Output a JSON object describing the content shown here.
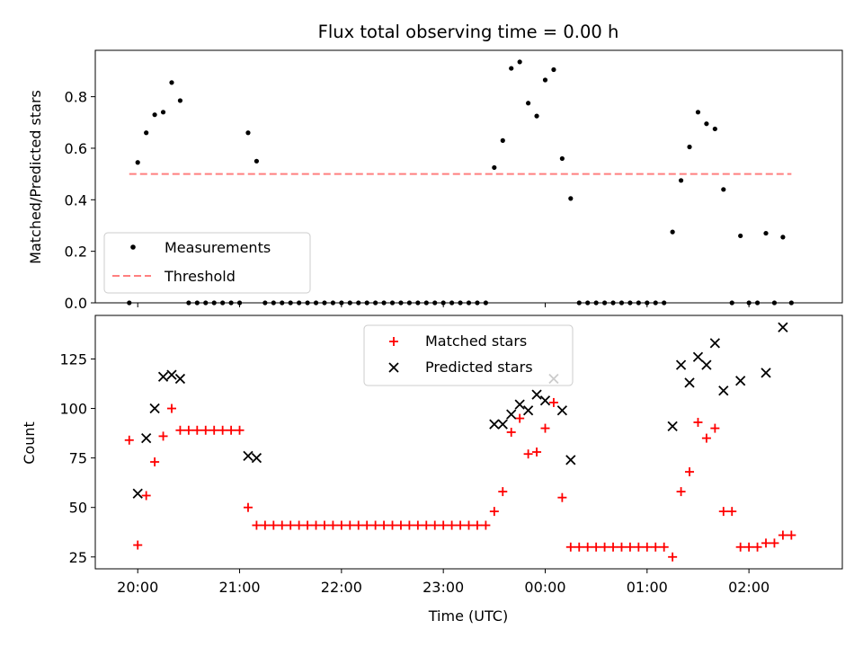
{
  "chart_data": [
    {
      "type": "scatter",
      "title": "Flux total observing time = 0.00 h",
      "xlabel": "",
      "ylabel": "Matched/Predicted stars",
      "xlim": [
        "19:35",
        "02:55"
      ],
      "ylim": [
        0,
        0.98
      ],
      "yticks": [
        "0.0",
        "0.2",
        "0.4",
        "0.6",
        "0.8"
      ],
      "grid": false,
      "legend": "lower-left",
      "series": [
        {
          "name": "Measurements",
          "marker": "dot",
          "color": "#000000",
          "points": [
            [
              "19:55",
              0
            ],
            [
              "20:00",
              0.545
            ],
            [
              "20:05",
              0.66
            ],
            [
              "20:10",
              0.73
            ],
            [
              "20:15",
              0.74
            ],
            [
              "20:20",
              0.855
            ],
            [
              "20:25",
              0.785
            ],
            [
              "20:30",
              0
            ],
            [
              "20:35",
              0
            ],
            [
              "20:40",
              0
            ],
            [
              "20:45",
              0
            ],
            [
              "20:50",
              0
            ],
            [
              "20:55",
              0
            ],
            [
              "21:00",
              0
            ],
            [
              "21:05",
              0.66
            ],
            [
              "21:10",
              0.55
            ],
            [
              "21:15",
              0
            ],
            [
              "21:20",
              0
            ],
            [
              "21:25",
              0
            ],
            [
              "21:30",
              0
            ],
            [
              "21:35",
              0
            ],
            [
              "21:40",
              0
            ],
            [
              "21:45",
              0
            ],
            [
              "21:50",
              0
            ],
            [
              "21:55",
              0
            ],
            [
              "22:00",
              0
            ],
            [
              "22:05",
              0
            ],
            [
              "22:10",
              0
            ],
            [
              "22:15",
              0
            ],
            [
              "22:20",
              0
            ],
            [
              "22:25",
              0
            ],
            [
              "22:30",
              0
            ],
            [
              "22:35",
              0
            ],
            [
              "22:40",
              0
            ],
            [
              "22:45",
              0
            ],
            [
              "22:50",
              0
            ],
            [
              "22:55",
              0
            ],
            [
              "23:00",
              0
            ],
            [
              "23:05",
              0
            ],
            [
              "23:10",
              0
            ],
            [
              "23:15",
              0
            ],
            [
              "23:20",
              0
            ],
            [
              "23:25",
              0
            ],
            [
              "23:30",
              0.525
            ],
            [
              "23:35",
              0.63
            ],
            [
              "23:40",
              0.91
            ],
            [
              "23:45",
              0.935
            ],
            [
              "23:50",
              0.775
            ],
            [
              "23:55",
              0.725
            ],
            [
              "00:00",
              0.865
            ],
            [
              "00:05",
              0.905
            ],
            [
              "00:10",
              0.56
            ],
            [
              "00:15",
              0.405
            ],
            [
              "00:20",
              0
            ],
            [
              "00:25",
              0
            ],
            [
              "00:30",
              0
            ],
            [
              "00:35",
              0
            ],
            [
              "00:40",
              0
            ],
            [
              "00:45",
              0
            ],
            [
              "00:50",
              0
            ],
            [
              "00:55",
              0
            ],
            [
              "01:00",
              0
            ],
            [
              "01:05",
              0
            ],
            [
              "01:10",
              0
            ],
            [
              "01:15",
              0.275
            ],
            [
              "01:20",
              0.475
            ],
            [
              "01:25",
              0.605
            ],
            [
              "01:30",
              0.74
            ],
            [
              "01:35",
              0.695
            ],
            [
              "01:40",
              0.675
            ],
            [
              "01:45",
              0.44
            ],
            [
              "01:50",
              0
            ],
            [
              "01:55",
              0.26
            ],
            [
              "02:00",
              0
            ],
            [
              "02:05",
              0
            ],
            [
              "02:10",
              0.27
            ],
            [
              "02:15",
              0
            ],
            [
              "02:20",
              0.255
            ],
            [
              "02:25",
              0
            ]
          ]
        },
        {
          "name": "Threshold",
          "marker": "dashed-line",
          "color": "#ff7f7f",
          "points": [
            [
              "19:55",
              0.5
            ],
            [
              "02:25",
              0.5
            ]
          ]
        }
      ]
    },
    {
      "type": "scatter",
      "title": "",
      "xlabel": "Time (UTC)",
      "ylabel": "Count",
      "xlim": [
        "19:35",
        "02:55"
      ],
      "ylim": [
        19,
        147
      ],
      "xticks": [
        "20:00",
        "21:00",
        "22:00",
        "23:00",
        "00:00",
        "01:00",
        "02:00"
      ],
      "yticks": [
        "25",
        "50",
        "75",
        "100",
        "125"
      ],
      "grid": false,
      "legend": "upper-center",
      "series": [
        {
          "name": "Matched stars",
          "marker": "plus",
          "color": "#ff0000",
          "points": [
            [
              "19:55",
              84
            ],
            [
              "20:00",
              31
            ],
            [
              "20:05",
              56
            ],
            [
              "20:10",
              73
            ],
            [
              "20:15",
              86
            ],
            [
              "20:20",
              100
            ],
            [
              "20:25",
              89
            ],
            [
              "20:30",
              89
            ],
            [
              "20:35",
              89
            ],
            [
              "20:40",
              89
            ],
            [
              "20:45",
              89
            ],
            [
              "20:50",
              89
            ],
            [
              "20:55",
              89
            ],
            [
              "21:00",
              89
            ],
            [
              "21:05",
              50
            ],
            [
              "21:10",
              41
            ],
            [
              "21:15",
              41
            ],
            [
              "21:20",
              41
            ],
            [
              "21:25",
              41
            ],
            [
              "21:30",
              41
            ],
            [
              "21:35",
              41
            ],
            [
              "21:40",
              41
            ],
            [
              "21:45",
              41
            ],
            [
              "21:50",
              41
            ],
            [
              "21:55",
              41
            ],
            [
              "22:00",
              41
            ],
            [
              "22:05",
              41
            ],
            [
              "22:10",
              41
            ],
            [
              "22:15",
              41
            ],
            [
              "22:20",
              41
            ],
            [
              "22:25",
              41
            ],
            [
              "22:30",
              41
            ],
            [
              "22:35",
              41
            ],
            [
              "22:40",
              41
            ],
            [
              "22:45",
              41
            ],
            [
              "22:50",
              41
            ],
            [
              "22:55",
              41
            ],
            [
              "23:00",
              41
            ],
            [
              "23:05",
              41
            ],
            [
              "23:10",
              41
            ],
            [
              "23:15",
              41
            ],
            [
              "23:20",
              41
            ],
            [
              "23:25",
              41
            ],
            [
              "23:30",
              48
            ],
            [
              "23:35",
              58
            ],
            [
              "23:40",
              88
            ],
            [
              "23:45",
              95
            ],
            [
              "23:50",
              77
            ],
            [
              "23:55",
              78
            ],
            [
              "00:00",
              90
            ],
            [
              "00:05",
              103
            ],
            [
              "00:10",
              55
            ],
            [
              "00:15",
              30
            ],
            [
              "00:20",
              30
            ],
            [
              "00:25",
              30
            ],
            [
              "00:30",
              30
            ],
            [
              "00:35",
              30
            ],
            [
              "00:40",
              30
            ],
            [
              "00:45",
              30
            ],
            [
              "00:50",
              30
            ],
            [
              "00:55",
              30
            ],
            [
              "01:00",
              30
            ],
            [
              "01:05",
              30
            ],
            [
              "01:10",
              30
            ],
            [
              "01:15",
              25
            ],
            [
              "01:20",
              58
            ],
            [
              "01:25",
              68
            ],
            [
              "01:30",
              93
            ],
            [
              "01:35",
              85
            ],
            [
              "01:40",
              90
            ],
            [
              "01:45",
              48
            ],
            [
              "01:50",
              48
            ],
            [
              "01:55",
              30
            ],
            [
              "02:00",
              30
            ],
            [
              "02:05",
              30
            ],
            [
              "02:10",
              32
            ],
            [
              "02:15",
              32
            ],
            [
              "02:20",
              36
            ],
            [
              "02:25",
              36
            ]
          ]
        },
        {
          "name": "Predicted stars",
          "marker": "x",
          "color": "#000000",
          "points": [
            [
              "20:00",
              57
            ],
            [
              "20:05",
              85
            ],
            [
              "20:10",
              100
            ],
            [
              "20:15",
              116
            ],
            [
              "20:20",
              117
            ],
            [
              "20:25",
              115
            ],
            [
              "21:05",
              76
            ],
            [
              "21:10",
              75
            ],
            [
              "23:30",
              92
            ],
            [
              "23:35",
              92
            ],
            [
              "23:40",
              97
            ],
            [
              "23:45",
              102
            ],
            [
              "23:50",
              99
            ],
            [
              "23:55",
              107
            ],
            [
              "00:00",
              104
            ],
            [
              "00:05",
              115
            ],
            [
              "00:10",
              99
            ],
            [
              "00:15",
              74
            ],
            [
              "01:15",
              91
            ],
            [
              "01:20",
              122
            ],
            [
              "01:25",
              113
            ],
            [
              "01:30",
              126
            ],
            [
              "01:35",
              122
            ],
            [
              "01:40",
              133
            ],
            [
              "01:45",
              109
            ],
            [
              "01:55",
              114
            ],
            [
              "02:10",
              118
            ],
            [
              "02:20",
              141
            ]
          ]
        }
      ]
    }
  ]
}
